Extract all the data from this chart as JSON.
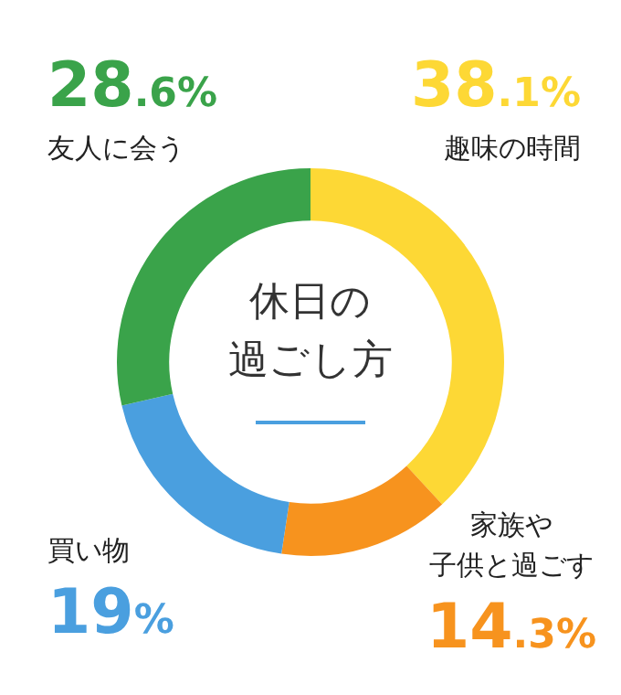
{
  "chart_data": {
    "type": "donut",
    "title": "休日の過ごし方",
    "categories": [
      "趣味の時間",
      "家族や子供と過ごす",
      "買い物",
      "友人に会う"
    ],
    "values": [
      38.1,
      14.3,
      19,
      28.6
    ],
    "value_labels": [
      "38.1%",
      "14.3%",
      "19%",
      "28.6%"
    ],
    "colors": [
      "#fdd835",
      "#f7931e",
      "#4a9fdf",
      "#3aa34a"
    ],
    "legend": false
  }
}
